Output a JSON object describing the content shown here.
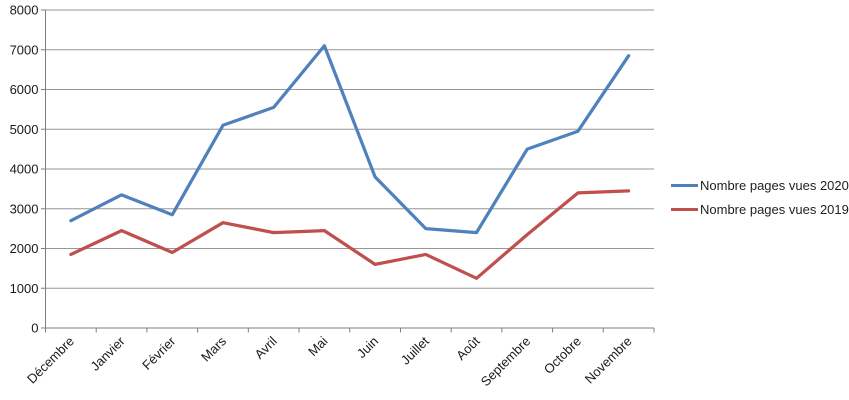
{
  "chart_data": {
    "type": "line",
    "categories": [
      "Décembre",
      "Janvier",
      "Février",
      "Mars",
      "Avril",
      "Mai",
      "Juin",
      "Juillet",
      "Août",
      "Septembre",
      "Octobre",
      "Novembre"
    ],
    "series": [
      {
        "name": "Nombre pages vues 2020",
        "color": "#4F81BD",
        "values": [
          2700,
          3350,
          2850,
          5100,
          5550,
          7100,
          3800,
          2500,
          2400,
          4500,
          4950,
          6850
        ]
      },
      {
        "name": "Nombre pages vues 2019",
        "color": "#C0504D",
        "values": [
          1850,
          2450,
          1900,
          2650,
          2400,
          2450,
          1600,
          1850,
          1250,
          2350,
          3400,
          3450
        ]
      }
    ],
    "title": "",
    "xlabel": "",
    "ylabel": "",
    "ylim": [
      0,
      8000
    ],
    "ytick_step": 1000,
    "ytick_labels": [
      "0",
      "1000",
      "2000",
      "3000",
      "4000",
      "5000",
      "6000",
      "7000",
      "8000"
    ],
    "grid": true,
    "legend_position": "right",
    "x_label_rotation_deg": 45
  },
  "colors": {
    "series_2020": "#4F81BD",
    "series_2019": "#C0504D",
    "gridline": "#969696",
    "axis": "#7F7F7F",
    "tick_text": "#1a1a1a",
    "background": "#FFFFFF"
  }
}
